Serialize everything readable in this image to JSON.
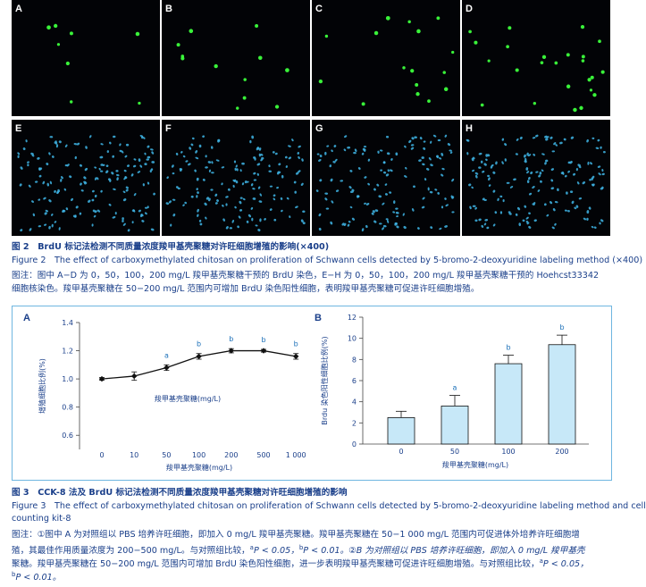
{
  "figure2": {
    "panels": [
      {
        "letter": "A",
        "stain": "brdu",
        "cells": 8
      },
      {
        "letter": "B",
        "stain": "brdu",
        "cells": 12
      },
      {
        "letter": "C",
        "stain": "brdu",
        "cells": 16
      },
      {
        "letter": "D",
        "stain": "brdu",
        "cells": 24
      },
      {
        "letter": "E",
        "stain": "hoechst",
        "cells": 160
      },
      {
        "letter": "F",
        "stain": "hoechst",
        "cells": 150
      },
      {
        "letter": "G",
        "stain": "hoechst",
        "cells": 140
      },
      {
        "letter": "H",
        "stain": "hoechst",
        "cells": 160
      }
    ],
    "colors": {
      "brdu": "#3cff3c",
      "hoechst": "#3fb6e8",
      "background": "#020306"
    },
    "caption_cn": "图 2　BrdU 标记法检测不同质量浓度羧甲基壳聚糖对许旺细胞增殖的影响(×400)",
    "caption_en": "Figure 2　The effect of carboxymethylated chitosan on proliferation of Schwann cells detected by 5-bromo-2-deoxyuridine labeling method (×400)",
    "note_1": "图注：图中 A−D 为 0，50，100，200 mg/L 羧甲基壳聚糖干预的 BrdU 染色，E−H 为 0，50，100，200 mg/L 羧甲基壳聚糖干预的 Hoehcst33342",
    "note_2": "细胞核染色。羧甲基壳聚糖在 50−200 mg/L 范围内可增加 BrdU 染色阳性细胞，表明羧甲基壳聚糖可促进许旺细胞增殖。"
  },
  "chart_data": [
    {
      "type": "line",
      "panel_letter": "A",
      "categories": [
        "0",
        "10",
        "50",
        "100",
        "200",
        "500",
        "1 000"
      ],
      "values": [
        1.0,
        1.02,
        1.08,
        1.16,
        1.2,
        1.2,
        1.16
      ],
      "errors": [
        0.01,
        0.03,
        0.02,
        0.02,
        0.015,
        0.01,
        0.02
      ],
      "sig": [
        "",
        "",
        "a",
        "b",
        "b",
        "b",
        "b"
      ],
      "xlabel": "羧甲基壳聚糖(mg/L)",
      "ylabel": "增殖细胞比例(%)",
      "inner_label": "羧甲基壳聚糖(mg/L)",
      "yticks": [
        "0.6",
        "0.8",
        "1.0",
        "1.2",
        "1.4"
      ],
      "ylim": [
        0.5,
        1.4
      ],
      "grid": false
    },
    {
      "type": "bar",
      "panel_letter": "B",
      "categories": [
        "0",
        "50",
        "100",
        "200"
      ],
      "values": [
        2.5,
        3.6,
        7.6,
        9.4
      ],
      "errors": [
        0.6,
        1.0,
        0.8,
        0.9
      ],
      "sig": [
        "",
        "a",
        "b",
        "b"
      ],
      "xlabel": "羧甲基壳聚糖(mg/L)",
      "ylabel": "Brdu 染色阳性细胞比例(%)",
      "yticks": [
        "0",
        "2",
        "4",
        "6",
        "8",
        "10",
        "12"
      ],
      "ylim": [
        0,
        12
      ],
      "grid": false
    }
  ],
  "figure3": {
    "caption_cn": "图 3　CCK-8 法及 BrdU 标记法检测不同质量浓度羧甲基壳聚糖对许旺细胞增殖的影响",
    "caption_en_1": "Figure 3　The effect of carboxymethylated chitosan on proliferation of Schwann cells detected by 5-bromo-2-deoxyuridine labeling method and cell",
    "caption_en_2": "counting kit-8",
    "note_1": "图注：①图中 A 为对照组以 PBS 培养许旺细胞，即加入 0 mg/L 羧甲基壳聚糖。羧甲基壳聚糖在 50−1 000 mg/L 范围内可促进体外培养许旺细胞增",
    "note_2a": "殖，其最佳作用质量浓度为 200−500 mg/L。与对照组比较，",
    "note_2b": "P < 0.05，",
    "note_2c": "P < 0.01。②B 为对照组以 PBS 培养许旺细胞，即加入 0 mg/L 羧甲基壳",
    "note_3a": "聚糖。羧甲基壳聚糖在 50−200 mg/L 范围内可增加 BrdU 染色阳性细胞，进一步表明羧甲基壳聚糖可促进许旺细胞增殖。与对照组比较，",
    "note_3b": "P < 0.05，",
    "note_4": "P < 0.01。",
    "sup_a": "a",
    "sup_b": "b"
  }
}
